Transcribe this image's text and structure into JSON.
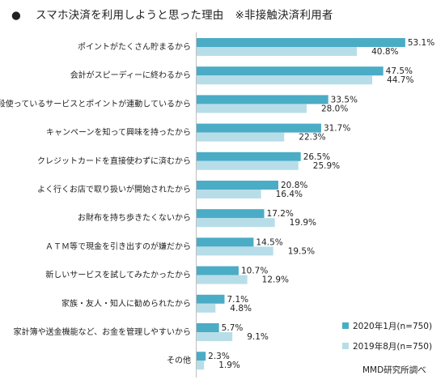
{
  "title": {
    "bullet": "●",
    "main": "スマホ決済を利用しようと思った理由",
    "note": "※非接触決済利用者"
  },
  "source": "MMD研究所調べ",
  "colors": {
    "series_2020": "#4bacc6",
    "series_2019": "#b7dee8",
    "axis": "#bfbfbf"
  },
  "chart_data": {
    "type": "bar",
    "orientation": "horizontal",
    "categories": [
      "ポイントがたくさん貯まるから",
      "会計がスピーディーに終わるから",
      "普段使っているサービスとポイントが連動しているから",
      "キャンペーンを知って興味を持ったから",
      "クレジットカードを直接使わずに済むから",
      "よく行くお店で取り扱いが開始されたから",
      "お財布を持ち歩きたくないから",
      "ＡＴＭ等で現金を引き出すのが嫌だから",
      "新しいサービスを試してみたかったから",
      "家族・友人・知人に勧められたから",
      "家計簿や送金機能など、お金を管理しやすいから",
      "その他"
    ],
    "series": [
      {
        "name": "2020年1月(n=750)",
        "values": [
          53.1,
          47.5,
          33.5,
          31.7,
          26.5,
          20.8,
          17.2,
          14.5,
          10.7,
          7.1,
          5.7,
          2.3
        ]
      },
      {
        "name": "2019年8月(n=750)",
        "values": [
          40.8,
          44.7,
          28.0,
          22.3,
          25.9,
          16.4,
          19.9,
          19.5,
          12.9,
          4.8,
          9.1,
          1.9
        ]
      }
    ],
    "value_suffix": "%",
    "xlim": [
      0,
      60
    ],
    "legend_position": "bottom-right",
    "grid": false
  }
}
